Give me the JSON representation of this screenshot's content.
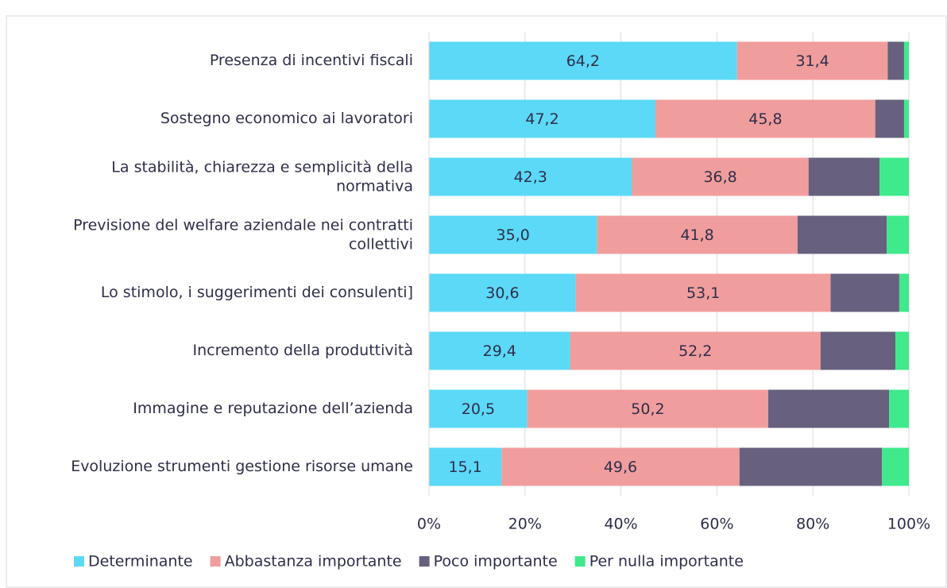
{
  "chart_data": {
    "type": "stacked_barh",
    "categories": [
      "Presenza di incentivi fiscali",
      "Sostegno economico ai lavoratori",
      "La stabilità, chiarezza e semplicità della normativa",
      "Previsione del welfare aziendale nei contratti collettivi",
      "Lo stimolo, i suggerimenti dei consulenti]",
      "Incremento della produttività",
      "Immagine e reputazione dell’azienda",
      "Evoluzione strumenti gestione risorse umane"
    ],
    "series": [
      {
        "name": "Determinante",
        "color": "#5bd9f7",
        "values": [
          64.2,
          47.2,
          42.3,
          35.0,
          30.6,
          29.4,
          20.5,
          15.1
        ],
        "value_labels": [
          "64,2",
          "47,2",
          "42,3",
          "35,0",
          "30,6",
          "29,4",
          "20,5",
          "15,1"
        ]
      },
      {
        "name": "Abbastanza importante",
        "color": "#f09d9d",
        "values": [
          31.4,
          45.8,
          36.8,
          41.8,
          53.1,
          52.2,
          50.2,
          49.6
        ],
        "value_labels": [
          "31,4",
          "45,8",
          "36,8",
          "41,8",
          "53,1",
          "52,2",
          "50,2",
          "49,6"
        ]
      },
      {
        "name": "Poco importante",
        "color": "#67607e",
        "values": [
          3.4,
          6.0,
          14.8,
          18.6,
          14.3,
          15.6,
          25.2,
          29.7
        ]
      },
      {
        "name": "Per nulla importante",
        "color": "#3fe98c",
        "values": [
          1.0,
          1.0,
          6.1,
          4.6,
          2.0,
          2.8,
          4.1,
          5.6
        ]
      }
    ],
    "xlim": [
      0,
      100
    ],
    "xticks": [
      {
        "value": 0,
        "label": "0%"
      },
      {
        "value": 20,
        "label": "20%"
      },
      {
        "value": 40,
        "label": "40%"
      },
      {
        "value": 60,
        "label": "60%"
      },
      {
        "value": 80,
        "label": "80%"
      },
      {
        "value": 100,
        "label": "100%"
      }
    ],
    "grid": true,
    "legend": "bottom"
  }
}
